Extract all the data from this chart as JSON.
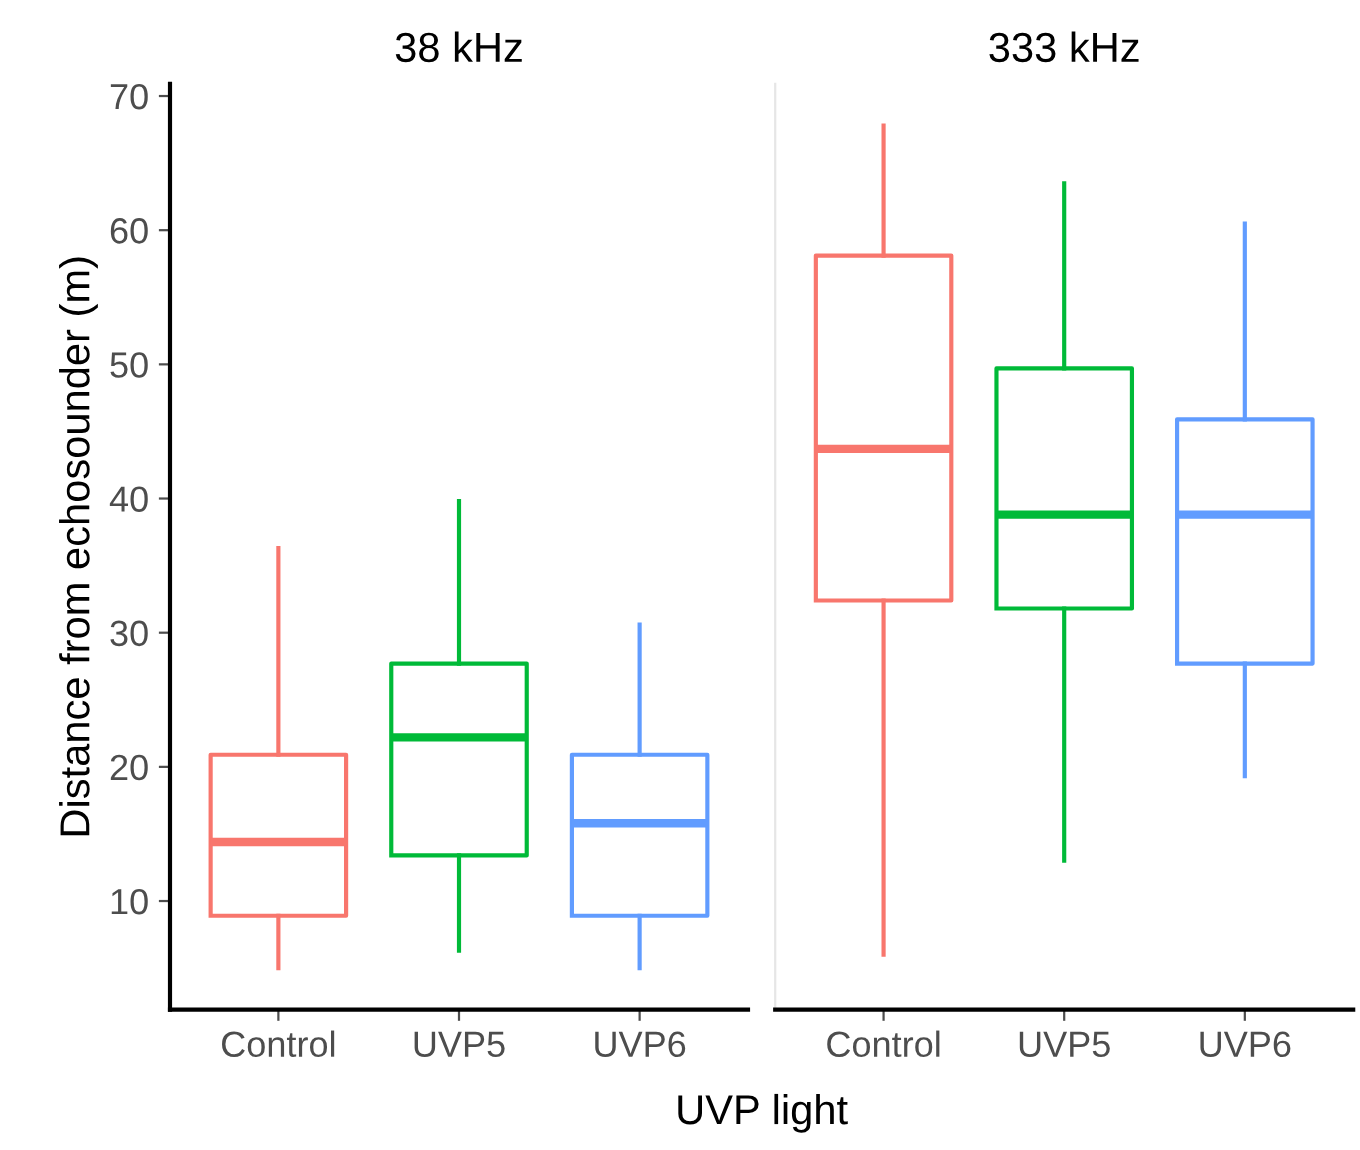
{
  "chart_data": [
    {
      "type": "box",
      "title": "38 kHz",
      "xlabel": "UVP light",
      "ylabel": "Distance from echosounder (m)",
      "categories": [
        "Control",
        "UVP5",
        "UVP6"
      ],
      "colors": [
        "#f8766d",
        "#00ba38",
        "#619cff"
      ],
      "boxes": [
        {
          "low": 5.0,
          "q1": 8.9,
          "median": 14.4,
          "q3": 20.9,
          "high": 36.3
        },
        {
          "low": 6.3,
          "q1": 13.4,
          "median": 22.2,
          "q3": 27.7,
          "high": 39.8
        },
        {
          "low": 5.0,
          "q1": 8.9,
          "median": 15.8,
          "q3": 20.9,
          "high": 30.6
        }
      ],
      "ylim": [
        1.9,
        70.9
      ],
      "yticks": [
        10,
        20,
        30,
        40,
        50,
        60,
        70
      ],
      "grid": false,
      "legend": false
    },
    {
      "type": "box",
      "title": "333 kHz",
      "categories": [
        "Control",
        "UVP5",
        "UVP6"
      ],
      "colors": [
        "#f8766d",
        "#00ba38",
        "#619cff"
      ],
      "boxes": [
        {
          "low": 6.0,
          "q1": 32.4,
          "median": 43.7,
          "q3": 58.1,
          "high": 67.8
        },
        {
          "low": 13.0,
          "q1": 31.8,
          "median": 38.8,
          "q3": 49.7,
          "high": 63.5
        },
        {
          "low": 19.3,
          "q1": 27.7,
          "median": 38.8,
          "q3": 45.9,
          "high": 60.5
        }
      ],
      "ylim": [
        1.9,
        70.9
      ],
      "yticks": [
        10,
        20,
        30,
        40,
        50,
        60,
        70
      ],
      "tick_labels": "x",
      "grid": false,
      "legend": false
    }
  ]
}
